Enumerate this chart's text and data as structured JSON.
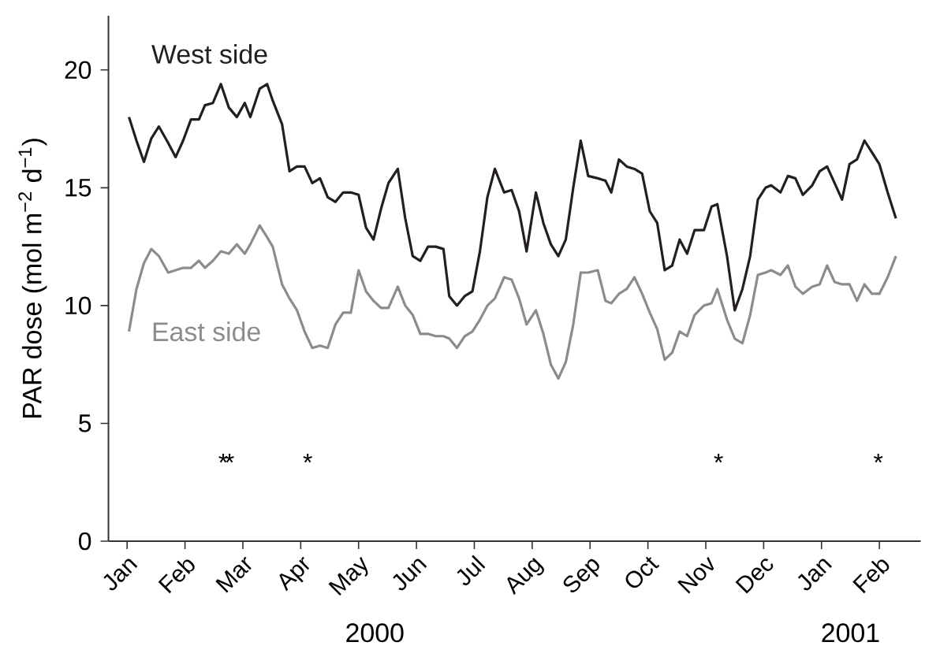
{
  "chart_data": {
    "type": "line",
    "ylabel": "PAR dose (mol m$^{−2}$ d$^{−1}$)",
    "xlim": [
      "1999-12-22",
      "2001-02-21"
    ],
    "ylim": [
      0,
      22.3
    ],
    "xticks": [
      {
        "value": "2000-01-01",
        "label": "Jan"
      },
      {
        "value": "2000-02-01",
        "label": "Feb"
      },
      {
        "value": "2000-03-01",
        "label": "Mar"
      },
      {
        "value": "2000-04-01",
        "label": "Apr"
      },
      {
        "value": "2000-05-01",
        "label": "May"
      },
      {
        "value": "2000-06-01",
        "label": "Jun"
      },
      {
        "value": "2000-07-01",
        "label": "Jul"
      },
      {
        "value": "2000-08-01",
        "label": "Aug"
      },
      {
        "value": "2000-09-01",
        "label": "Sep"
      },
      {
        "value": "2000-10-01",
        "label": "Oct"
      },
      {
        "value": "2000-11-01",
        "label": "Nov"
      },
      {
        "value": "2000-12-01",
        "label": "Dec"
      },
      {
        "value": "2001-01-01",
        "label": "Jan"
      },
      {
        "value": "2001-02-01",
        "label": "Feb"
      }
    ],
    "x": [
      "2000-01-02",
      "2000-01-06",
      "2000-01-10",
      "2000-01-14",
      "2000-01-18",
      "2000-01-23",
      "2000-01-27",
      "2000-01-31",
      "2000-02-04",
      "2000-02-08",
      "2000-02-11",
      "2000-02-15",
      "2000-02-19",
      "2000-02-23",
      "2000-02-27",
      "2000-03-02",
      "2000-03-05",
      "2000-03-10",
      "2000-03-14",
      "2000-03-17",
      "2000-03-22",
      "2000-03-26",
      "2000-03-30",
      "2000-04-03",
      "2000-04-07",
      "2000-04-11",
      "2000-04-15",
      "2000-04-19",
      "2000-04-23",
      "2000-04-27",
      "2000-05-01",
      "2000-05-05",
      "2000-05-09",
      "2000-05-13",
      "2000-05-17",
      "2000-05-22",
      "2000-05-26",
      "2000-05-30",
      "2000-06-03",
      "2000-06-07",
      "2000-06-11",
      "2000-06-15",
      "2000-06-18",
      "2000-06-22",
      "2000-06-26",
      "2000-06-30",
      "2000-07-04",
      "2000-07-08",
      "2000-07-12",
      "2000-07-17",
      "2000-07-21",
      "2000-07-25",
      "2000-07-29",
      "2000-08-03",
      "2000-08-07",
      "2000-08-11",
      "2000-08-15",
      "2000-08-19",
      "2000-08-23",
      "2000-08-27",
      "2000-08-31",
      "2000-09-05",
      "2000-09-09",
      "2000-09-12",
      "2000-09-16",
      "2000-09-20",
      "2000-09-24",
      "2000-09-28",
      "2000-10-02",
      "2000-10-06",
      "2000-10-10",
      "2000-10-14",
      "2000-10-18",
      "2000-10-22",
      "2000-10-26",
      "2000-10-31",
      "2000-11-04",
      "2000-11-07",
      "2000-11-12",
      "2000-11-16",
      "2000-11-20",
      "2000-11-24",
      "2000-11-28",
      "2000-12-02",
      "2000-12-05",
      "2000-12-10",
      "2000-12-14",
      "2000-12-18",
      "2000-12-22",
      "2000-12-27",
      "2000-12-31",
      "2001-01-04",
      "2001-01-08",
      "2001-01-12",
      "2001-01-16",
      "2001-01-20",
      "2001-01-24",
      "2001-01-28",
      "2001-02-01",
      "2001-02-05",
      "2001-02-09"
    ],
    "yticks": [
      0,
      5,
      10,
      15,
      20
    ],
    "grid": false,
    "legend": false,
    "marker": "none",
    "line_style": "solid",
    "series": [
      {
        "name": "West side",
        "color": "#231f20",
        "values": [
          18.0,
          17.0,
          16.1,
          17.1,
          17.6,
          16.9,
          16.3,
          17.0,
          17.9,
          17.9,
          18.5,
          18.6,
          19.4,
          18.4,
          18.0,
          18.6,
          18.0,
          19.2,
          19.4,
          18.7,
          17.7,
          15.7,
          15.9,
          15.9,
          15.2,
          15.4,
          14.6,
          14.4,
          14.8,
          14.8,
          14.7,
          13.3,
          12.8,
          14.1,
          15.2,
          15.8,
          13.7,
          12.1,
          11.9,
          12.5,
          12.5,
          12.4,
          10.4,
          10.0,
          10.4,
          10.6,
          12.3,
          14.6,
          15.8,
          14.8,
          14.9,
          14.0,
          12.3,
          14.8,
          13.5,
          12.6,
          12.1,
          12.8,
          15.0,
          17.0,
          15.5,
          15.4,
          15.3,
          14.8,
          16.2,
          15.9,
          15.8,
          15.6,
          14.0,
          13.5,
          11.5,
          11.7,
          12.8,
          12.2,
          13.2,
          13.2,
          14.2,
          14.3,
          12.1,
          9.8,
          10.7,
          12.1,
          14.5,
          15.0,
          15.1,
          14.8,
          15.5,
          15.4,
          14.7,
          15.1,
          15.7,
          15.9,
          15.2,
          14.5,
          16.0,
          16.2,
          17.0,
          16.5,
          16.0,
          14.8,
          13.7
        ]
      },
      {
        "name": "East side",
        "color": "#8c8c8c",
        "values": [
          8.9,
          10.7,
          11.8,
          12.4,
          12.1,
          11.4,
          11.5,
          11.6,
          11.6,
          11.9,
          11.6,
          11.9,
          12.3,
          12.2,
          12.6,
          12.2,
          12.6,
          13.4,
          12.9,
          12.5,
          10.9,
          10.3,
          9.8,
          8.9,
          8.2,
          8.3,
          8.2,
          9.2,
          9.7,
          9.7,
          11.5,
          10.6,
          10.2,
          9.9,
          9.9,
          10.8,
          10.0,
          9.6,
          8.8,
          8.8,
          8.7,
          8.7,
          8.6,
          8.2,
          8.7,
          8.9,
          9.4,
          10.0,
          10.3,
          11.2,
          11.1,
          10.3,
          9.2,
          9.8,
          8.8,
          7.5,
          6.9,
          7.6,
          9.2,
          11.4,
          11.4,
          11.5,
          10.2,
          10.1,
          10.5,
          10.7,
          11.2,
          10.5,
          9.7,
          9.0,
          7.7,
          8.0,
          8.9,
          8.7,
          9.6,
          10.0,
          10.1,
          10.7,
          9.4,
          8.6,
          8.4,
          9.6,
          11.3,
          11.4,
          11.5,
          11.3,
          11.7,
          10.8,
          10.5,
          10.8,
          10.9,
          11.7,
          11.0,
          10.9,
          10.9,
          10.2,
          10.9,
          10.5,
          10.5,
          11.2,
          12.1
        ]
      }
    ],
    "annotations": [
      "*",
      "*",
      "*",
      "*",
      "*",
      "2000",
      "2001"
    ]
  }
}
